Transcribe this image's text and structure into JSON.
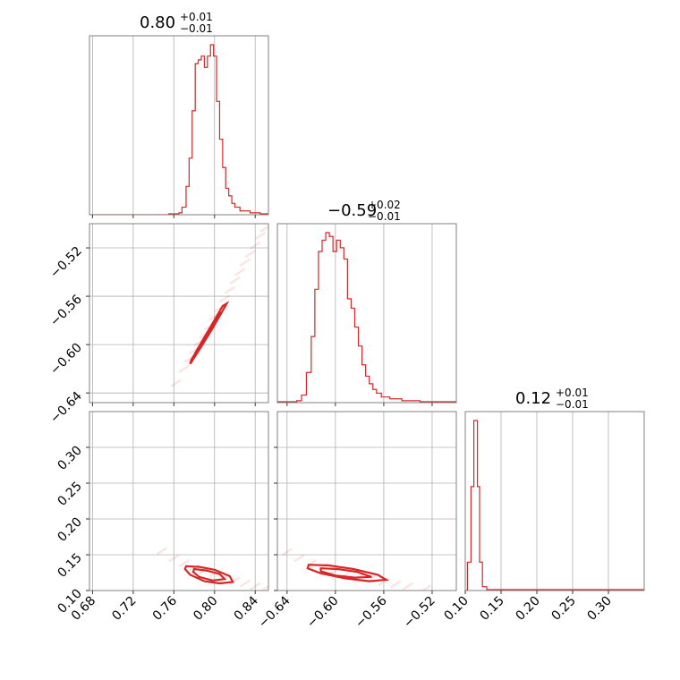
{
  "chart_data": {
    "type": "corner",
    "color": "#d62728",
    "params": [
      {
        "range": [
          0.677,
          0.853
        ],
        "ticks": [
          0.68,
          0.72,
          0.76,
          0.8,
          0.84
        ],
        "tick_labels": [
          "0.68",
          "0.72",
          "0.76",
          "0.80",
          "0.84"
        ],
        "title_main": "0.80",
        "title_plus": "+0.01",
        "title_minus": "−0.01",
        "hist": [
          [
            0.677,
            0.0
          ],
          [
            0.755,
            0.005
          ],
          [
            0.765,
            0.01
          ],
          [
            0.768,
            0.04
          ],
          [
            0.772,
            0.15
          ],
          [
            0.775,
            0.3
          ],
          [
            0.778,
            0.55
          ],
          [
            0.781,
            0.8
          ],
          [
            0.784,
            0.82
          ],
          [
            0.787,
            0.84
          ],
          [
            0.79,
            0.78
          ],
          [
            0.793,
            0.84
          ],
          [
            0.796,
            0.9
          ],
          [
            0.799,
            0.84
          ],
          [
            0.802,
            0.6
          ],
          [
            0.805,
            0.4
          ],
          [
            0.808,
            0.25
          ],
          [
            0.811,
            0.14
          ],
          [
            0.814,
            0.1
          ],
          [
            0.817,
            0.06
          ],
          [
            0.82,
            0.04
          ],
          [
            0.825,
            0.02
          ],
          [
            0.835,
            0.01
          ],
          [
            0.845,
            0.005
          ],
          [
            0.853,
            0.01
          ]
        ]
      },
      {
        "range": [
          -0.648,
          -0.5
        ],
        "ticks": [
          -0.64,
          -0.6,
          -0.56,
          -0.52
        ],
        "tick_labels": [
          "−0.64",
          "−0.60",
          "−0.56",
          "−0.52"
        ],
        "title_main": "−0.59",
        "title_plus": "+0.02",
        "title_minus": "−0.01",
        "hist": [
          [
            -0.648,
            0.005
          ],
          [
            -0.632,
            0.01
          ],
          [
            -0.628,
            0.04
          ],
          [
            -0.624,
            0.16
          ],
          [
            -0.62,
            0.35
          ],
          [
            -0.617,
            0.6
          ],
          [
            -0.614,
            0.8
          ],
          [
            -0.611,
            0.86
          ],
          [
            -0.608,
            0.9
          ],
          [
            -0.605,
            0.88
          ],
          [
            -0.602,
            0.8
          ],
          [
            -0.599,
            0.86
          ],
          [
            -0.596,
            0.82
          ],
          [
            -0.593,
            0.76
          ],
          [
            -0.59,
            0.55
          ],
          [
            -0.587,
            0.5
          ],
          [
            -0.584,
            0.4
          ],
          [
            -0.581,
            0.3
          ],
          [
            -0.578,
            0.2
          ],
          [
            -0.575,
            0.14
          ],
          [
            -0.572,
            0.1
          ],
          [
            -0.569,
            0.07
          ],
          [
            -0.566,
            0.05
          ],
          [
            -0.562,
            0.03
          ],
          [
            -0.555,
            0.02
          ],
          [
            -0.545,
            0.01
          ],
          [
            -0.53,
            0.005
          ],
          [
            -0.5,
            0.005
          ]
        ]
      },
      {
        "range": [
          0.1,
          0.35
        ],
        "ticks": [
          0.1,
          0.15,
          0.2,
          0.25,
          0.3
        ],
        "tick_labels": [
          "0.10",
          "0.15",
          "0.20",
          "0.25",
          "0.30"
        ],
        "title_main": "0.12",
        "title_plus": "+0.01",
        "title_minus": "−0.01",
        "hist": [
          [
            0.1,
            0.0
          ],
          [
            0.103,
            0.15
          ],
          [
            0.108,
            0.55
          ],
          [
            0.112,
            0.9
          ],
          [
            0.117,
            0.55
          ],
          [
            0.12,
            0.15
          ],
          [
            0.124,
            0.02
          ],
          [
            0.13,
            0.005
          ],
          [
            0.35,
            0.0
          ]
        ]
      }
    ],
    "pairs": [
      {
        "x": 0,
        "y": 1,
        "samples": [
          [
            0.762,
            -0.632
          ],
          [
            0.77,
            -0.62
          ],
          [
            0.775,
            -0.612
          ],
          [
            0.78,
            -0.605
          ],
          [
            0.785,
            -0.598
          ],
          [
            0.79,
            -0.592
          ],
          [
            0.795,
            -0.585
          ],
          [
            0.8,
            -0.577
          ],
          [
            0.805,
            -0.57
          ],
          [
            0.81,
            -0.562
          ],
          [
            0.815,
            -0.555
          ],
          [
            0.82,
            -0.547
          ],
          [
            0.825,
            -0.54
          ],
          [
            0.83,
            -0.532
          ],
          [
            0.835,
            -0.525
          ],
          [
            0.84,
            -0.518
          ],
          [
            0.845,
            -0.51
          ],
          [
            0.85,
            -0.504
          ]
        ],
        "contours": [
          [
            [
              0.776,
              -0.616
            ],
            [
              0.786,
              -0.603
            ],
            [
              0.797,
              -0.588
            ],
            [
              0.808,
              -0.572
            ],
            [
              0.812,
              -0.566
            ],
            [
              0.808,
              -0.568
            ],
            [
              0.797,
              -0.584
            ],
            [
              0.786,
              -0.6
            ],
            [
              0.777,
              -0.613
            ]
          ],
          [
            [
              0.78,
              -0.61
            ],
            [
              0.79,
              -0.597
            ],
            [
              0.8,
              -0.583
            ],
            [
              0.806,
              -0.573
            ],
            [
              0.8,
              -0.58
            ],
            [
              0.79,
              -0.594
            ],
            [
              0.781,
              -0.607
            ]
          ]
        ]
      },
      {
        "x": 0,
        "y": 2,
        "samples": [
          [
            0.748,
            0.155
          ],
          [
            0.76,
            0.145
          ],
          [
            0.77,
            0.138
          ],
          [
            0.78,
            0.132
          ],
          [
            0.79,
            0.128
          ],
          [
            0.8,
            0.124
          ],
          [
            0.81,
            0.118
          ],
          [
            0.82,
            0.114
          ],
          [
            0.83,
            0.11
          ],
          [
            0.84,
            0.106
          ],
          [
            0.85,
            0.103
          ]
        ],
        "contours": [
          [
            [
              0.772,
              0.134
            ],
            [
              0.785,
              0.133
            ],
            [
              0.8,
              0.129
            ],
            [
              0.815,
              0.12
            ],
            [
              0.818,
              0.112
            ],
            [
              0.805,
              0.11
            ],
            [
              0.79,
              0.113
            ],
            [
              0.776,
              0.122
            ],
            [
              0.771,
              0.13
            ],
            [
              0.772,
              0.134
            ]
          ],
          [
            [
              0.78,
              0.13
            ],
            [
              0.792,
              0.128
            ],
            [
              0.805,
              0.123
            ],
            [
              0.81,
              0.116
            ],
            [
              0.798,
              0.114
            ],
            [
              0.785,
              0.119
            ],
            [
              0.779,
              0.126
            ],
            [
              0.78,
              0.13
            ]
          ]
        ]
      },
      {
        "x": 1,
        "y": 2,
        "samples": [
          [
            -0.64,
            0.154
          ],
          [
            -0.63,
            0.145
          ],
          [
            -0.62,
            0.138
          ],
          [
            -0.61,
            0.133
          ],
          [
            -0.6,
            0.128
          ],
          [
            -0.59,
            0.124
          ],
          [
            -0.58,
            0.12
          ],
          [
            -0.57,
            0.116
          ],
          [
            -0.56,
            0.112
          ],
          [
            -0.55,
            0.109
          ],
          [
            -0.54,
            0.106
          ],
          [
            -0.525,
            0.103
          ]
        ],
        "contours": [
          [
            [
              -0.622,
              0.136
            ],
            [
              -0.605,
              0.135
            ],
            [
              -0.585,
              0.13
            ],
            [
              -0.565,
              0.122
            ],
            [
              -0.558,
              0.115
            ],
            [
              -0.572,
              0.113
            ],
            [
              -0.592,
              0.117
            ],
            [
              -0.612,
              0.124
            ],
            [
              -0.623,
              0.131
            ],
            [
              -0.622,
              0.136
            ]
          ],
          [
            [
              -0.612,
              0.131
            ],
            [
              -0.598,
              0.13
            ],
            [
              -0.582,
              0.126
            ],
            [
              -0.57,
              0.119
            ],
            [
              -0.584,
              0.118
            ],
            [
              -0.6,
              0.121
            ],
            [
              -0.612,
              0.127
            ],
            [
              -0.612,
              0.131
            ]
          ]
        ]
      }
    ]
  }
}
